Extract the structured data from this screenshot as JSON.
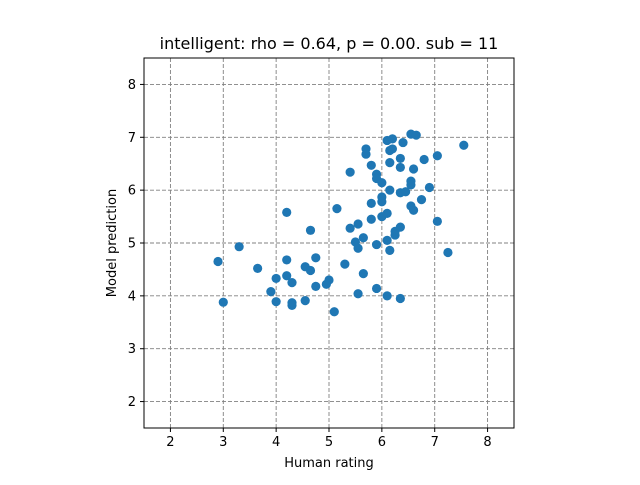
{
  "chart_data": {
    "type": "scatter",
    "title": "intelligent: rho = 0.64, p = 0.00. sub = 11",
    "xlabel": "Human rating",
    "ylabel": "Model prediction",
    "xlim": [
      1.5,
      8.5
    ],
    "ylim": [
      1.5,
      8.5
    ],
    "xticks": [
      2,
      3,
      4,
      5,
      6,
      7,
      8
    ],
    "yticks": [
      2,
      3,
      4,
      5,
      6,
      7,
      8
    ],
    "xtick_labels": [
      "2",
      "3",
      "4",
      "5",
      "6",
      "7",
      "8"
    ],
    "ytick_labels": [
      "2",
      "3",
      "4",
      "5",
      "6",
      "7",
      "8"
    ],
    "grid": true,
    "grid_style": "dashed",
    "grid_color": "#808080",
    "marker_color": "#1f77b4",
    "points": [
      [
        2.9,
        4.65
      ],
      [
        3.0,
        3.88
      ],
      [
        3.3,
        4.93
      ],
      [
        3.65,
        4.52
      ],
      [
        3.9,
        4.08
      ],
      [
        4.0,
        4.33
      ],
      [
        4.0,
        3.89
      ],
      [
        4.2,
        5.58
      ],
      [
        4.2,
        4.68
      ],
      [
        4.2,
        4.38
      ],
      [
        4.3,
        4.25
      ],
      [
        4.3,
        3.87
      ],
      [
        4.3,
        3.82
      ],
      [
        4.55,
        4.55
      ],
      [
        4.55,
        3.91
      ],
      [
        4.65,
        5.24
      ],
      [
        4.65,
        4.48
      ],
      [
        4.75,
        4.72
      ],
      [
        4.75,
        4.18
      ],
      [
        4.95,
        4.22
      ],
      [
        5.0,
        4.3
      ],
      [
        5.1,
        3.7
      ],
      [
        5.15,
        5.65
      ],
      [
        5.3,
        4.6
      ],
      [
        5.4,
        6.34
      ],
      [
        5.4,
        5.28
      ],
      [
        5.5,
        5.02
      ],
      [
        5.55,
        5.36
      ],
      [
        5.55,
        4.9
      ],
      [
        5.55,
        4.04
      ],
      [
        5.65,
        5.1
      ],
      [
        5.65,
        4.42
      ],
      [
        5.7,
        6.78
      ],
      [
        5.7,
        6.68
      ],
      [
        5.8,
        6.47
      ],
      [
        5.8,
        5.75
      ],
      [
        5.8,
        5.45
      ],
      [
        5.9,
        6.3
      ],
      [
        5.9,
        6.22
      ],
      [
        5.9,
        4.97
      ],
      [
        5.9,
        4.14
      ],
      [
        6.0,
        6.14
      ],
      [
        6.0,
        5.87
      ],
      [
        6.0,
        5.78
      ],
      [
        6.0,
        5.5
      ],
      [
        6.1,
        6.94
      ],
      [
        6.1,
        5.56
      ],
      [
        6.1,
        5.05
      ],
      [
        6.1,
        4.0
      ],
      [
        6.15,
        6.75
      ],
      [
        6.15,
        6.52
      ],
      [
        6.15,
        6.0
      ],
      [
        6.15,
        4.86
      ],
      [
        6.2,
        6.97
      ],
      [
        6.2,
        6.78
      ],
      [
        6.25,
        5.22
      ],
      [
        6.25,
        5.15
      ],
      [
        6.35,
        6.6
      ],
      [
        6.35,
        6.43
      ],
      [
        6.35,
        5.95
      ],
      [
        6.35,
        5.3
      ],
      [
        6.35,
        3.95
      ],
      [
        6.4,
        6.9
      ],
      [
        6.45,
        5.97
      ],
      [
        6.55,
        7.06
      ],
      [
        6.55,
        6.17
      ],
      [
        6.55,
        6.1
      ],
      [
        6.55,
        5.7
      ],
      [
        6.6,
        6.4
      ],
      [
        6.6,
        5.62
      ],
      [
        6.65,
        7.04
      ],
      [
        6.75,
        5.82
      ],
      [
        6.8,
        6.58
      ],
      [
        6.9,
        6.05
      ],
      [
        7.05,
        6.65
      ],
      [
        7.05,
        5.41
      ],
      [
        7.25,
        4.82
      ],
      [
        7.55,
        6.85
      ]
    ]
  }
}
